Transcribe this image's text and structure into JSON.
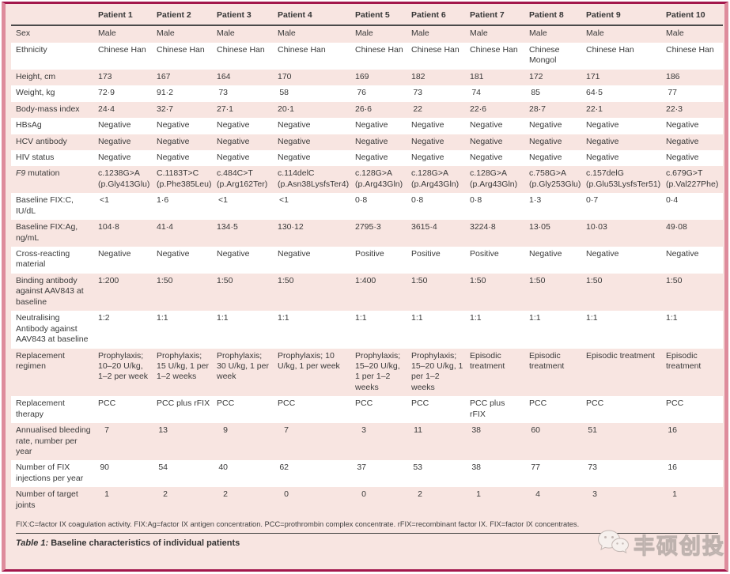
{
  "colors": {
    "crimson": "#a3174b",
    "rose": "#de8c9c",
    "pink": "#f8e5e1"
  },
  "table": {
    "columns": [
      "",
      "Patient 1",
      "Patient 2",
      "Patient 3",
      "Patient 4",
      "Patient 5",
      "Patient 6",
      "Patient 7",
      "Patient 8",
      "Patient 9",
      "Patient 10"
    ],
    "rows": [
      {
        "label": "Sex",
        "values": [
          "Male",
          "Male",
          "Male",
          "Male",
          "Male",
          "Male",
          "Male",
          "Male",
          "Male",
          "Male"
        ]
      },
      {
        "label": "Ethnicity",
        "values": [
          "Chinese Han",
          "Chinese Han",
          "Chinese Han",
          "Chinese Han",
          "Chinese Han",
          "Chinese Han",
          "Chinese Han",
          "Chinese Mongol",
          "Chinese Han",
          "Chinese Han"
        ]
      },
      {
        "label": "Height, cm",
        "num": true,
        "values": [
          "173",
          "167",
          "164",
          "170",
          "169",
          "182",
          "181",
          "172",
          "171",
          "186"
        ]
      },
      {
        "label": "Weight, kg",
        "num": true,
        "values": [
          "72·9",
          "91·2",
          "73",
          "58",
          "76",
          "73",
          "74",
          "85",
          "64·5",
          "77"
        ]
      },
      {
        "label": "Body-mass index",
        "num": true,
        "values": [
          "24·4",
          "32·7",
          "27·1",
          "20·1",
          "26·6",
          "22",
          "22·6",
          "28·7",
          "22·1",
          "22·3"
        ]
      },
      {
        "label": "HBsAg",
        "values": [
          "Negative",
          "Negative",
          "Negative",
          "Negative",
          "Negative",
          "Negative",
          "Negative",
          "Negative",
          "Negative",
          "Negative"
        ]
      },
      {
        "label": "HCV antibody",
        "values": [
          "Negative",
          "Negative",
          "Negative",
          "Negative",
          "Negative",
          "Negative",
          "Negative",
          "Negative",
          "Negative",
          "Negative"
        ]
      },
      {
        "label": "HIV status",
        "values": [
          "Negative",
          "Negative",
          "Negative",
          "Negative",
          "Negative",
          "Negative",
          "Negative",
          "Negative",
          "Negative",
          "Negative"
        ]
      },
      {
        "label_italic": "F9",
        "label": " mutation",
        "values": [
          "c.1238G>A (p.Gly413Glu)",
          "C.1183T>C (p.Phe385Leu)",
          "c.484C>T (p.Arg162Ter)",
          "c.114delC (p.Asn38LysfsTer4)",
          "c.128G>A (p.Arg43Gln)",
          "c.128G>A (p.Arg43Gln)",
          "c.128G>A (p.Arg43Gln)",
          "c.758G>A (p.Gly253Glu)",
          "c.157delG (p.Glu53LysfsTer51)",
          "c.679G>T (p.Val227Phe)"
        ]
      },
      {
        "label": "Baseline FIX:C, IU/dL",
        "num": true,
        "values": [
          "<1",
          "1·6",
          "<1",
          "<1",
          "0·8",
          "0·8",
          "0·8",
          "1·3",
          "0·7",
          "0·4"
        ]
      },
      {
        "label": "Baseline FIX:Ag, ng/mL",
        "num": true,
        "values": [
          "104·8",
          "41·4",
          "134·5",
          "130·12",
          "2795·3",
          "3615·4",
          "3224·8",
          "13·05",
          "10·03",
          "49·08"
        ]
      },
      {
        "label": "Cross-reacting material",
        "values": [
          "Negative",
          "Negative",
          "Negative",
          "Negative",
          "Positive",
          "Positive",
          "Positive",
          "Negative",
          "Negative",
          "Negative"
        ]
      },
      {
        "label": "Binding antibody against AAV843 at baseline",
        "num": true,
        "values": [
          "1:200",
          "1:50",
          "1:50",
          "1:50",
          "1:400",
          "1:50",
          "1:50",
          "1:50",
          "1:50",
          "1:50"
        ]
      },
      {
        "label": "Neutralising Antibody against AAV843 at baseline",
        "num": true,
        "values": [
          "1:2",
          "1:1",
          "1:1",
          "1:1",
          "1:1",
          "1:1",
          "1:1",
          "1:1",
          "1:1",
          "1:1"
        ]
      },
      {
        "label": "Replacement regimen",
        "values": [
          "Prophylaxis; 10–20 U/kg, 1–2 per week",
          "Prophylaxis; 15 U/kg, 1 per 1–2 weeks",
          "Prophylaxis; 30 U/kg, 1 per week",
          "Prophylaxis; 10 U/kg, 1 per week",
          "Prophylaxis; 15–20 U/kg, 1 per 1–2 weeks",
          "Prophylaxis; 15–20 U/kg, 1 per 1–2 weeks",
          "Episodic treatment",
          "Episodic treatment",
          "Episodic treatment",
          "Episodic treatment"
        ]
      },
      {
        "label": "Replacement therapy",
        "values": [
          "PCC",
          "PCC plus rFIX",
          "PCC",
          "PCC",
          "PCC",
          "PCC",
          "PCC plus rFIX",
          "PCC",
          "PCC",
          "PCC"
        ]
      },
      {
        "label": "Annualised bleeding rate, number per year",
        "num": true,
        "values": [
          "7",
          "13",
          "9",
          "7",
          "3",
          "11",
          "38",
          "60",
          "51",
          "16"
        ]
      },
      {
        "label": "Number of FIX injections per year",
        "num": true,
        "values": [
          "90",
          "54",
          "40",
          "62",
          "37",
          "53",
          "38",
          "77",
          "73",
          "16"
        ]
      },
      {
        "label": "Number of target joints",
        "num": true,
        "values": [
          "1",
          "2",
          "2",
          "0",
          "0",
          "2",
          "1",
          "4",
          "3",
          "1"
        ]
      }
    ]
  },
  "footnote": "FIX:C=factor IX coagulation activity. FIX:Ag=factor IX antigen concentration. PCC=prothrombin complex concentrate. rFIX=recombinant factor IX. FIX=factor IX concentrates.",
  "caption": {
    "prefix": "Table 1:",
    "text": " Baseline characteristics of individual patients"
  },
  "watermark": {
    "text": "丰硕创投",
    "icon": "wechat-icon"
  }
}
